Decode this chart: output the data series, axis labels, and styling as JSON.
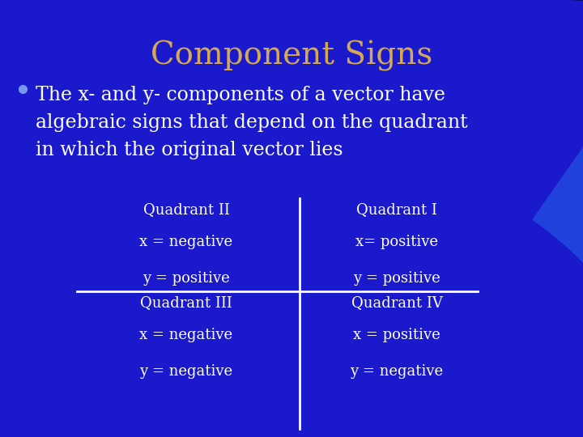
{
  "title": "Component Signs",
  "title_color": "#D4A855",
  "title_fontsize": 28,
  "bg_color": "#1a1acc",
  "bullet_color": "#7799ee",
  "bullet_text_lines": [
    "The x- and y- components of a vector have",
    "algebraic signs that depend on the quadrant",
    "in which the original vector lies"
  ],
  "bullet_text_color": "#ffffff",
  "bullet_fontsize": 17,
  "quadrant_text_color": "#ffffff",
  "quadrant_fontsize": 13,
  "quadrants": {
    "II": {
      "label": "Quadrant II",
      "x_sign": "x = negative",
      "y_sign": "y = positive"
    },
    "I": {
      "label": "Quadrant I",
      "x_sign": "x= positive",
      "y_sign": "y = positive"
    },
    "III": {
      "label": "Quadrant III",
      "x_sign": "x = negative",
      "y_sign": "y = negative"
    },
    "IV": {
      "label": "Quadrant IV",
      "x_sign": "x = positive",
      "y_sign": "y = negative"
    }
  },
  "cross_color": "#ffffff",
  "cross_linewidth": 2.0,
  "dark_corner_color": "#000020",
  "swoosh_color": "#2244dd"
}
